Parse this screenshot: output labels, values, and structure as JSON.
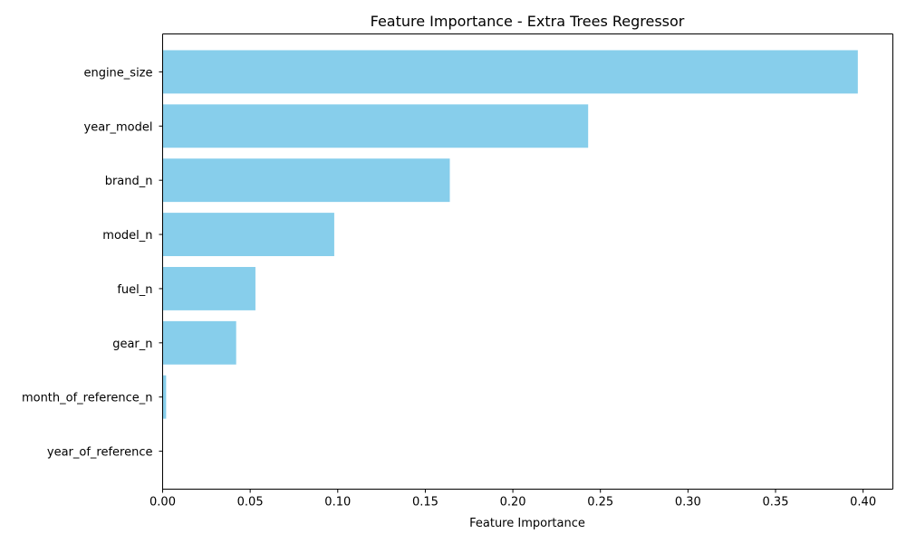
{
  "chart_data": {
    "type": "bar",
    "orientation": "horizontal",
    "title": "Feature Importance - Extra Trees Regressor",
    "xlabel": "Feature Importance",
    "ylabel": "",
    "categories": [
      "engine_size",
      "year_model",
      "brand_n",
      "model_n",
      "fuel_n",
      "gear_n",
      "month_of_reference_n",
      "year_of_reference"
    ],
    "values": [
      0.397,
      0.243,
      0.164,
      0.098,
      0.053,
      0.042,
      0.002,
      0.0
    ],
    "xlim": [
      0.0,
      0.417
    ],
    "x_ticks": [
      "0.00",
      "0.05",
      "0.10",
      "0.15",
      "0.20",
      "0.25",
      "0.30",
      "0.35",
      "0.40"
    ],
    "x_tick_values": [
      0.0,
      0.05,
      0.1,
      0.15,
      0.2,
      0.25,
      0.3,
      0.35,
      0.4
    ],
    "bar_color": "#87CEEB",
    "grid": false,
    "legend": "none"
  }
}
